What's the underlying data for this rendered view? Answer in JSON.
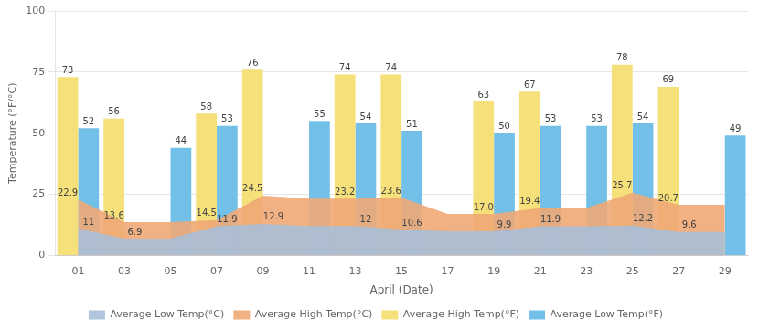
{
  "chart_data": {
    "type": "bar",
    "xlabel": "April (Date)",
    "ylabel": "Temperature (°F/°C)",
    "categories": [
      "01",
      "03",
      "05",
      "07",
      "09",
      "11",
      "13",
      "15",
      "17",
      "19",
      "21",
      "23",
      "25",
      "27",
      "29"
    ],
    "ylim": [
      0,
      100
    ],
    "yticks": [
      0,
      25,
      50,
      75,
      100
    ],
    "grid": true,
    "legend": "bottom",
    "series": [
      {
        "name": "Average High Temp(°F)",
        "type": "bar",
        "color": "#F5E07A",
        "data_labels": true,
        "values": [
          73,
          56,
          null,
          58,
          76,
          null,
          74,
          74,
          null,
          63,
          67,
          null,
          78,
          69,
          null
        ]
      },
      {
        "name": "Average Low Temp(°F)",
        "type": "bar",
        "color": "#72C0E8",
        "data_labels": true,
        "values": [
          52,
          null,
          44,
          53,
          null,
          55,
          54,
          51,
          null,
          50,
          53,
          53,
          54,
          null,
          49
        ]
      },
      {
        "name": "Average High Temp(°C)",
        "type": "area",
        "color": "#F0A875",
        "data_labels": true,
        "values": [
          22.9,
          13.6,
          13.6,
          14.5,
          24.5,
          23.2,
          23.2,
          23.6,
          17.0,
          17.0,
          19.4,
          19.4,
          25.7,
          20.7,
          20.7
        ],
        "value_labels": [
          "22.9",
          "13.6",
          null,
          "14.5",
          "24.5",
          null,
          "23.2",
          "23.6",
          null,
          "17.0",
          "19.4",
          null,
          "25.7",
          "20.7",
          null
        ]
      },
      {
        "name": "Average Low Temp(°C)",
        "type": "area",
        "color": "#A8BFD8",
        "data_labels": true,
        "values": [
          11,
          6.9,
          6.9,
          11.9,
          12.9,
          12.0,
          12.0,
          10.6,
          9.9,
          9.9,
          11.9,
          11.9,
          12.2,
          9.6,
          9.6
        ],
        "value_labels": [
          "11",
          "6.9",
          null,
          "11.9",
          "12.9",
          null,
          "12",
          "10.6",
          null,
          "9.9",
          "11.9",
          null,
          "12.2",
          "9.6",
          null
        ]
      }
    ]
  }
}
